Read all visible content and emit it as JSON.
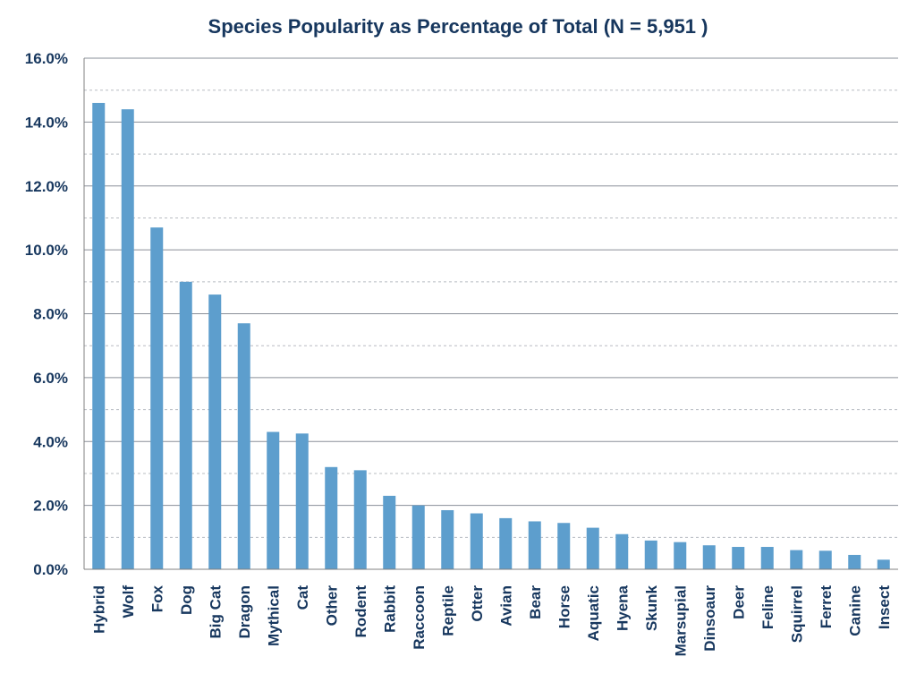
{
  "chart_data": {
    "type": "bar",
    "title": "Species Popularity as Percentage of Total  (N = 5,951 )",
    "xlabel": "",
    "ylabel": "",
    "ylim": [
      0,
      16
    ],
    "yticks": [
      "0.0%",
      "2.0%",
      "4.0%",
      "6.0%",
      "8.0%",
      "10.0%",
      "12.0%",
      "14.0%",
      "16.0%"
    ],
    "grid": "major solid, minor dashed",
    "colors": {
      "bar": "#5d9ecd",
      "text": "#17375e"
    },
    "categories": [
      "Hybrid",
      "Wolf",
      "Fox",
      "Dog",
      "Big Cat",
      "Dragon",
      "Mythical",
      "Cat",
      "Other",
      "Rodent",
      "Rabbit",
      "Raccoon",
      "Reptile",
      "Otter",
      "Avian",
      "Bear",
      "Horse",
      "Aquatic",
      "Hyena",
      "Skunk",
      "Marsupial",
      "Dinsoaur",
      "Deer",
      "Feline",
      "Squirrel",
      "Ferret",
      "Canine",
      "Insect"
    ],
    "series": [
      {
        "values": [
          14.6,
          14.4,
          10.7,
          9.0,
          8.6,
          7.7,
          4.3,
          4.25,
          3.2,
          3.1,
          2.3,
          2.0,
          1.85,
          1.75,
          1.6,
          1.5,
          1.45,
          1.3,
          1.1,
          0.9,
          0.85,
          0.75,
          0.7,
          0.7,
          0.6,
          0.58,
          0.45,
          0.3
        ]
      }
    ]
  }
}
